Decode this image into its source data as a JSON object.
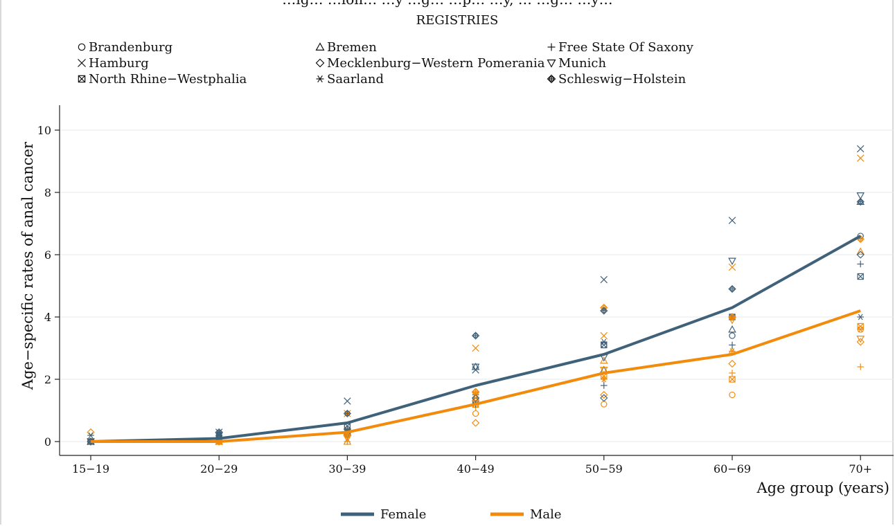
{
  "chart_data": {
    "type": "line",
    "title": "…ig… …ion… …y …g… …p… …y, … …g… …y…",
    "registries_title": "REGISTRIES",
    "xlabel": "Age group (years)",
    "ylabel": "Age−specific rates of anal cancer",
    "categories": [
      "15−19",
      "20−29",
      "30−39",
      "40−49",
      "50−59",
      "60−69",
      "70+"
    ],
    "ylim": [
      0,
      10.8
    ],
    "yticks": [
      0,
      2,
      4,
      6,
      8,
      10
    ],
    "grid": "horizontal",
    "colors": {
      "female": "#3f6179",
      "male": "#f28b0c"
    },
    "series": [
      {
        "name": "Female",
        "key": "female",
        "values": [
          0.0,
          0.1,
          0.6,
          1.8,
          2.8,
          4.3,
          6.6
        ]
      },
      {
        "name": "Male",
        "key": "male",
        "values": [
          0.0,
          0.0,
          0.3,
          1.2,
          2.2,
          2.8,
          4.2
        ]
      }
    ],
    "registries": [
      {
        "name": "Brandenburg",
        "marker": "circle",
        "female": [
          0.0,
          0.1,
          0.5,
          1.3,
          3.1,
          3.4,
          6.6
        ],
        "male": [
          0.0,
          0.0,
          0.2,
          0.9,
          1.2,
          1.5,
          3.6
        ]
      },
      {
        "name": "Hamburg",
        "marker": "x",
        "female": [
          0.0,
          0.3,
          1.3,
          2.3,
          5.2,
          7.1,
          9.4
        ],
        "male": [
          0.0,
          0.0,
          0.9,
          3.0,
          3.4,
          5.6,
          9.1
        ]
      },
      {
        "name": "North Rhine−Westphalia",
        "marker": "square-x",
        "female": [
          0.0,
          0.1,
          0.5,
          1.3,
          3.1,
          4.0,
          5.3
        ],
        "male": [
          0.0,
          0.0,
          0.3,
          1.2,
          2.1,
          2.0,
          3.7
        ]
      },
      {
        "name": "Bremen",
        "marker": "triangle-up",
        "female": [
          0.0,
          0.2,
          0.3,
          2.4,
          2.3,
          3.6,
          7.7
        ],
        "male": [
          0.0,
          0.0,
          0.0,
          1.4,
          2.6,
          2.9,
          6.1
        ]
      },
      {
        "name": "Mecklenburg−Western Pomerania",
        "marker": "diamond",
        "female": [
          0.0,
          0.1,
          0.4,
          1.4,
          1.4,
          4.0,
          6.0
        ],
        "male": [
          0.3,
          0.0,
          0.4,
          0.6,
          1.5,
          2.5,
          3.2
        ]
      },
      {
        "name": "Saarland",
        "marker": "asterisk",
        "female": [
          0.2,
          0.2,
          0.3,
          1.5,
          3.2,
          4.0,
          4.0
        ],
        "male": [
          0.0,
          0.0,
          0.2,
          1.3,
          2.0,
          2.9,
          3.6
        ]
      },
      {
        "name": "Free State Of Saxony",
        "marker": "plus",
        "female": [
          0.0,
          0.1,
          0.4,
          1.2,
          1.8,
          3.1,
          5.7
        ],
        "male": [
          0.0,
          0.0,
          0.0,
          1.1,
          2.0,
          2.2,
          2.4
        ]
      },
      {
        "name": "Munich",
        "marker": "triangle-down",
        "female": [
          0.0,
          0.2,
          0.2,
          2.4,
          2.7,
          5.8,
          7.9
        ],
        "male": [
          0.0,
          0.0,
          0.1,
          1.5,
          2.3,
          3.9,
          3.3
        ]
      },
      {
        "name": "Schleswig−Holstein",
        "marker": "circle-plus",
        "female": [
          0.0,
          0.3,
          0.9,
          3.4,
          4.2,
          4.9,
          7.7
        ],
        "male": [
          0.0,
          0.0,
          0.2,
          1.6,
          4.3,
          4.0,
          6.5
        ]
      }
    ]
  }
}
